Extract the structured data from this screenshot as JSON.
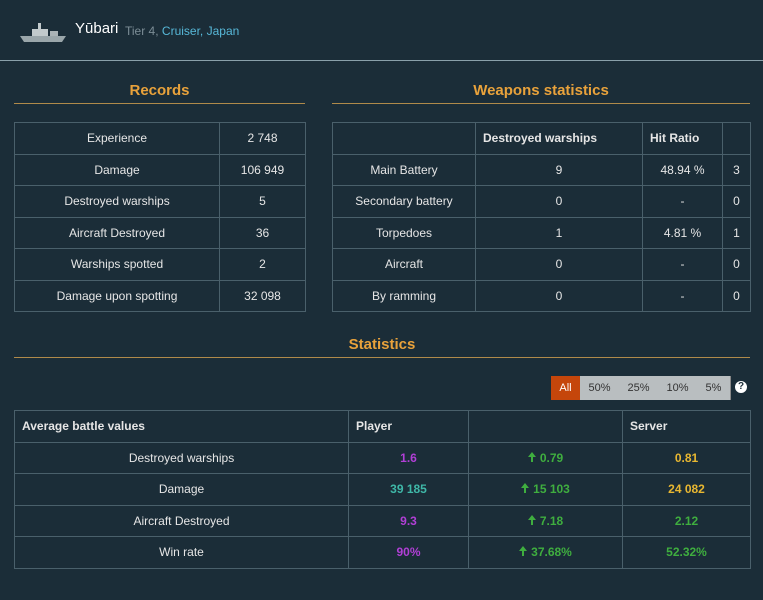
{
  "header": {
    "name": "Yūbari",
    "tier": "Tier 4,",
    "class": "Cruiser,",
    "nation": "Japan"
  },
  "records": {
    "title": "Records",
    "rows": [
      [
        "Experience",
        "2 748"
      ],
      [
        "Damage",
        "106 949"
      ],
      [
        "Destroyed warships",
        "5"
      ],
      [
        "Aircraft Destroyed",
        "36"
      ],
      [
        "Warships spotted",
        "2"
      ],
      [
        "Damage upon spotting",
        "32 098"
      ]
    ]
  },
  "weapons": {
    "title": "Weapons statistics",
    "headers": [
      "Destroyed warships",
      "Hit Ratio"
    ],
    "rows": [
      [
        "Main Battery",
        "9",
        "48.94 %",
        "3"
      ],
      [
        "Secondary battery",
        "0",
        "-",
        "0"
      ],
      [
        "Torpedoes",
        "1",
        "4.81 %",
        "1"
      ],
      [
        "Aircraft",
        "0",
        "-",
        "0"
      ],
      [
        "By ramming",
        "0",
        "-",
        "0"
      ]
    ]
  },
  "statistics": {
    "title": "Statistics",
    "filters": [
      "All",
      "50%",
      "25%",
      "10%",
      "5%"
    ],
    "help": "?",
    "headers": [
      "Average battle values",
      "Player",
      "Server"
    ],
    "rows": [
      {
        "label": "Destroyed warships",
        "player": "1.6",
        "player_color": "#b13fd6",
        "diff": "0.79",
        "server": "0.81",
        "server_color": "#e8b731"
      },
      {
        "label": "Damage",
        "player": "39 185",
        "player_color": "#3fb8a8",
        "diff": "15 103",
        "server": "24 082",
        "server_color": "#e8b731"
      },
      {
        "label": "Aircraft Destroyed",
        "player": "9.3",
        "player_color": "#b13fd6",
        "diff": "7.18",
        "server": "2.12",
        "server_color": "#3fae3f"
      },
      {
        "label": "Win rate",
        "player": "90%",
        "player_color": "#b13fd6",
        "diff": "37.68%",
        "server": "52.32%",
        "server_color": "#3fae3f"
      }
    ]
  }
}
